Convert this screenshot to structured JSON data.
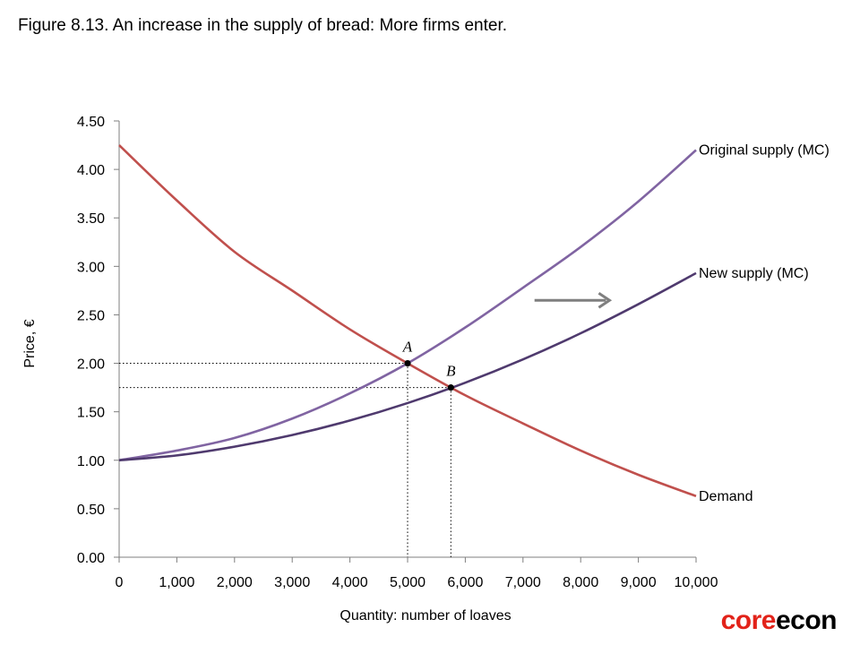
{
  "figure_title": "Figure 8.13. An increase in the supply of bread: More firms enter.",
  "brand": {
    "part1": "core",
    "part2": "econ"
  },
  "colors": {
    "demand": "#c0504d",
    "original_supply": "#8064a2",
    "new_supply": "#4f3a6e",
    "shift_arrow": "#7f7f7f",
    "axis": "#7f7f7f"
  },
  "chart_data": {
    "type": "line",
    "title": "Figure 8.13. An increase in the supply of bread: More firms enter.",
    "xlabel": "Quantity: number of loaves",
    "ylabel": "Price, €",
    "xlim": [
      0,
      10000
    ],
    "ylim": [
      0,
      4.5
    ],
    "x_ticks": [
      0,
      1000,
      2000,
      3000,
      4000,
      5000,
      6000,
      7000,
      8000,
      9000,
      10000
    ],
    "x_tick_labels": [
      "0",
      "1,000",
      "2,000",
      "3,000",
      "4,000",
      "5,000",
      "6,000",
      "7,000",
      "8,000",
      "9,000",
      "10,000"
    ],
    "y_ticks": [
      0,
      0.5,
      1,
      1.5,
      2,
      2.5,
      3,
      3.5,
      4,
      4.5
    ],
    "y_tick_labels": [
      "0.00",
      "0.50",
      "1.00",
      "1.50",
      "2.00",
      "2.50",
      "3.00",
      "3.50",
      "4.00",
      "4.50"
    ],
    "grid": false,
    "series": [
      {
        "name": "Original supply (MC)",
        "x": [
          0,
          1000,
          2000,
          3000,
          4000,
          5000,
          6000,
          7000,
          8000,
          9000,
          10000
        ],
        "y": [
          1.0,
          1.1,
          1.23,
          1.43,
          1.69,
          2.0,
          2.37,
          2.78,
          3.2,
          3.67,
          4.2
        ]
      },
      {
        "name": "New supply (MC)",
        "x": [
          0,
          1000,
          2000,
          3000,
          4000,
          5000,
          6000,
          7000,
          8000,
          9000,
          10000
        ],
        "y": [
          1.0,
          1.05,
          1.14,
          1.26,
          1.41,
          1.59,
          1.8,
          2.04,
          2.31,
          2.61,
          2.93
        ]
      },
      {
        "name": "Demand",
        "x": [
          0,
          1000,
          2000,
          3000,
          4000,
          5000,
          6000,
          7000,
          8000,
          9000,
          10000
        ],
        "y": [
          4.25,
          3.68,
          3.15,
          2.75,
          2.35,
          2.0,
          1.67,
          1.38,
          1.1,
          0.85,
          0.63
        ]
      }
    ],
    "points": [
      {
        "label": "A",
        "x": 5000,
        "y": 2.0
      },
      {
        "label": "B",
        "x": 5750,
        "y": 1.75
      }
    ],
    "shift_arrow": {
      "from": [
        7200,
        2.65
      ],
      "to": [
        8500,
        2.65
      ]
    }
  }
}
